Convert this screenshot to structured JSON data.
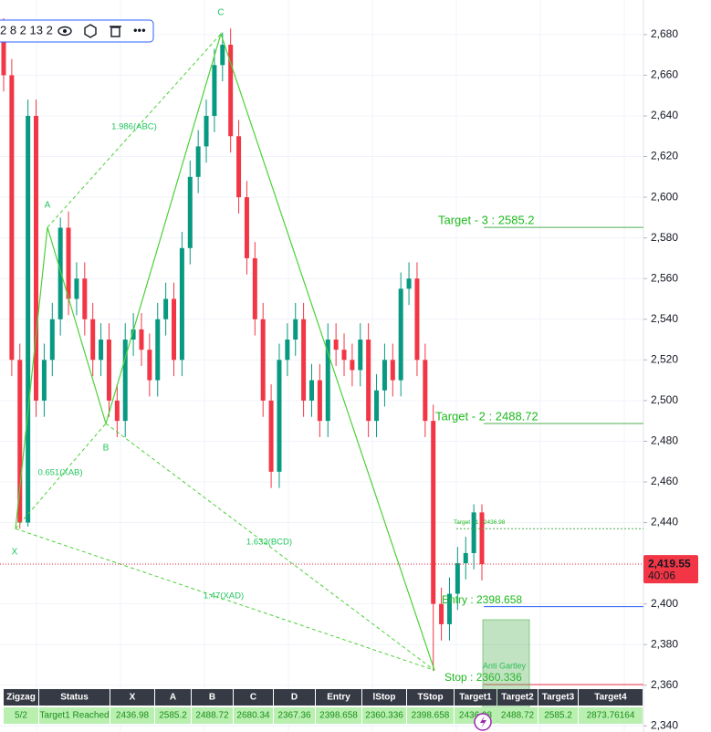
{
  "chart_data": {
    "type": "candlestick",
    "toolbar": "2 8 2 13 2",
    "ylim": [
      2337,
      2697
    ],
    "yticks": [
      {
        "value": 2340,
        "label": "2,340.00"
      },
      {
        "value": 2360,
        "label": "2,360.00"
      },
      {
        "value": 2380,
        "label": "2,380.00"
      },
      {
        "value": 2400,
        "label": "2,400.00"
      },
      {
        "value": 2420,
        "label": "2,420.00"
      },
      {
        "value": 2440,
        "label": "2,440.00"
      },
      {
        "value": 2460,
        "label": "2,460.00"
      },
      {
        "value": 2480,
        "label": "2,480.00"
      },
      {
        "value": 2500,
        "label": "2,500.00"
      },
      {
        "value": 2520,
        "label": "2,520.00"
      },
      {
        "value": 2540,
        "label": "2,540.00"
      },
      {
        "value": 2560,
        "label": "2,560.00"
      },
      {
        "value": 2580,
        "label": "2,580.00"
      },
      {
        "value": 2600,
        "label": "2,600.00"
      },
      {
        "value": 2620,
        "label": "2,620.00"
      },
      {
        "value": 2640,
        "label": "2,640.00"
      },
      {
        "value": 2660,
        "label": "2,660.00"
      },
      {
        "value": 2680,
        "label": "2,680.00"
      }
    ],
    "up_color": "#089981",
    "down_color": "#f23645",
    "open": [
      2680,
      2660,
      2520,
      2440,
      2640,
      2500,
      2520,
      2540,
      2585,
      2550,
      2560,
      2540,
      2520,
      2530,
      2500,
      2490,
      2530,
      2535,
      2525,
      2510,
      2540,
      2550,
      2520,
      2575,
      2610,
      2625,
      2640,
      2665,
      2675,
      2630,
      2600,
      2570,
      2540,
      2500,
      2465,
      2520,
      2530,
      2540,
      2500,
      2510,
      2490,
      2530,
      2525,
      2520,
      2515,
      2530,
      2490,
      2505,
      2520,
      2510,
      2555,
      2560,
      2520,
      2490,
      2400,
      2390,
      2405,
      2420,
      2425,
      2445
    ],
    "high": [
      2688,
      2668,
      2528,
      2648,
      2648,
      2528,
      2548,
      2590,
      2593,
      2568,
      2568,
      2548,
      2538,
      2538,
      2508,
      2538,
      2543,
      2543,
      2533,
      2548,
      2558,
      2558,
      2583,
      2618,
      2633,
      2648,
      2673,
      2681,
      2683,
      2638,
      2608,
      2578,
      2548,
      2508,
      2528,
      2538,
      2548,
      2548,
      2518,
      2518,
      2538,
      2538,
      2533,
      2528,
      2538,
      2538,
      2513,
      2528,
      2528,
      2563,
      2568,
      2568,
      2528,
      2498,
      2408,
      2413,
      2428,
      2433,
      2449,
      2449
    ],
    "low": [
      2652,
      2512,
      2437,
      2438,
      2492,
      2492,
      2512,
      2532,
      2542,
      2542,
      2532,
      2512,
      2512,
      2492,
      2482,
      2482,
      2522,
      2517,
      2502,
      2502,
      2532,
      2512,
      2512,
      2567,
      2602,
      2617,
      2632,
      2657,
      2622,
      2592,
      2562,
      2532,
      2492,
      2457,
      2457,
      2512,
      2522,
      2492,
      2492,
      2482,
      2482,
      2517,
      2512,
      2507,
      2507,
      2482,
      2482,
      2497,
      2502,
      2502,
      2547,
      2512,
      2482,
      2367,
      2382,
      2382,
      2397,
      2412,
      2417,
      2411.55
    ],
    "close": [
      2660,
      2520,
      2440,
      2640,
      2500,
      2520,
      2540,
      2585,
      2550,
      2560,
      2540,
      2520,
      2530,
      2500,
      2490,
      2530,
      2535,
      2525,
      2510,
      2540,
      2550,
      2520,
      2575,
      2610,
      2625,
      2640,
      2665,
      2675,
      2630,
      2600,
      2570,
      2540,
      2500,
      2465,
      2520,
      2530,
      2540,
      2500,
      2510,
      2490,
      2530,
      2525,
      2520,
      2515,
      2530,
      2490,
      2505,
      2520,
      2510,
      2555,
      2560,
      2520,
      2490,
      2400,
      2390,
      2405,
      2420,
      2425,
      2445,
      2419.55
    ],
    "last_price": {
      "value": 2419.55,
      "label": "2,419.55"
    },
    "countdown": "40:06",
    "pattern": {
      "color": "#4cd137",
      "points": [
        {
          "label": "X",
          "value": 2436.98
        },
        {
          "label": "A",
          "value": 2585.2
        },
        {
          "label": "B",
          "value": 2488.72
        },
        {
          "label": "C",
          "value": 2680.34
        },
        {
          "value": 2367.36
        }
      ],
      "ratios": [
        "1.986(ABC)",
        "0.651(XAB)",
        "1.633(BCD)",
        "1.47(XAD)"
      ],
      "name": "Anti Gartley"
    },
    "levels": [
      {
        "label": "Target - 3 : 2585.2",
        "value": 2585.2,
        "color": "#4caf50"
      },
      {
        "label": "Target - 2 : 2488.72",
        "value": 2488.72,
        "color": "#4caf50"
      },
      {
        "label": "Target - 1 : 2436.98",
        "value": 2436.98,
        "color": "#4caf50"
      },
      {
        "label": "Entry : 2398.658",
        "value": 2398.658,
        "color": "#2962ff"
      },
      {
        "label": "Stop : 2360.336",
        "value": 2360.336,
        "color": "#f23645"
      }
    ],
    "table": {
      "columns": [
        "Zigzag",
        "Status",
        "X",
        "A",
        "B",
        "C",
        "D",
        "Entry",
        "lStop",
        "TStop",
        "Target1",
        "Target2",
        "Target3",
        "Target4"
      ],
      "rows": [
        [
          "5/2",
          "Target1 Reached",
          "2436.98",
          "2585.2",
          "2488.72",
          "2680.34",
          "2367.36",
          "2398.658",
          "2360.336",
          "2398.658",
          "2436.98",
          "2488.72",
          "2585.2",
          "2873.76164"
        ]
      ]
    }
  }
}
